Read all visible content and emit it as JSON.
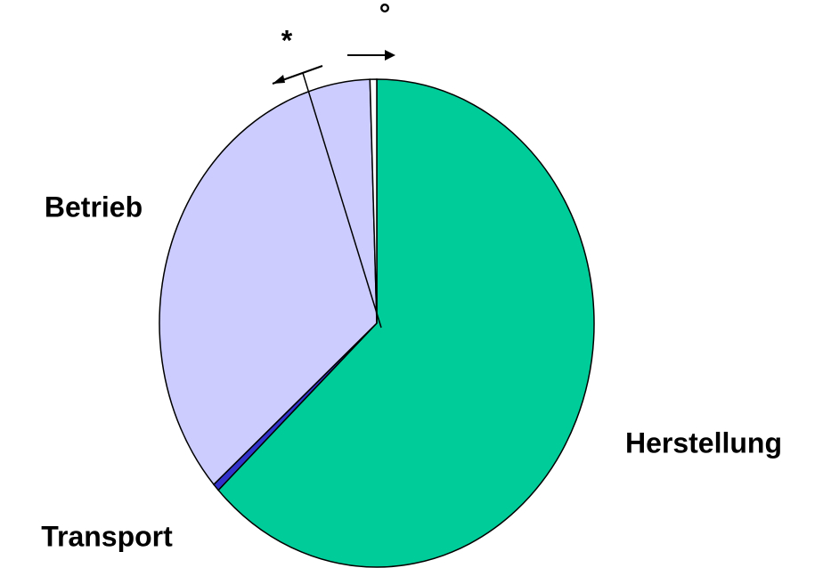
{
  "chart_data": {
    "type": "pie",
    "categories": [
      "Herstellung",
      "Transport",
      "Betrieb",
      "°"
    ],
    "values": [
      63,
      0.5,
      36,
      0.5
    ],
    "colors": [
      "#00cc99",
      "#3333cc",
      "#ccccff",
      "#ffffff"
    ],
    "annotation": "*"
  }
}
